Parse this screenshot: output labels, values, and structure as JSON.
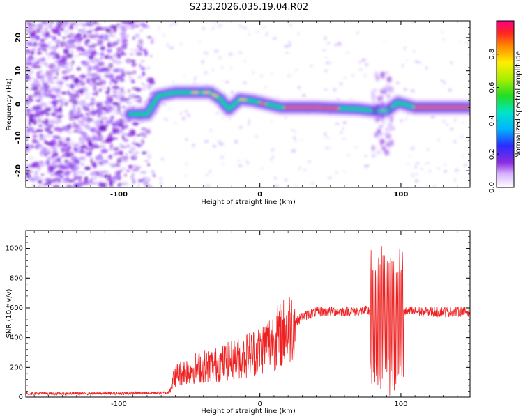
{
  "page_title": "S233.2026.035.19.04.R02",
  "chart_data": [
    {
      "type": "heatmap",
      "title": "S233.2026.035.19.04.R02",
      "xlabel": "Height of straight line (km)",
      "ylabel": "Frequency (Hz)",
      "xlim": [
        -166,
        149
      ],
      "ylim": [
        -25,
        25
      ],
      "x_ticks": [
        {
          "value": -100,
          "label": "-100"
        },
        {
          "value": 0,
          "label": "0"
        },
        {
          "value": 100,
          "label": "100"
        }
      ],
      "y_ticks": [
        {
          "value": 20,
          "label": "20"
        },
        {
          "value": 10,
          "label": "10"
        },
        {
          "value": 0,
          "label": "0"
        },
        {
          "value": -10,
          "label": "-10"
        },
        {
          "value": -20,
          "label": "-20"
        }
      ],
      "colorbar": {
        "label": "Normalized spectral amplitude",
        "range": [
          0,
          1
        ],
        "ticks": [
          {
            "value": 0.0,
            "label": "0.0"
          },
          {
            "value": 0.2,
            "label": "0.2"
          },
          {
            "value": 0.4,
            "label": "0.4"
          },
          {
            "value": 0.6,
            "label": "0.6"
          },
          {
            "value": 0.8,
            "label": "0.8"
          }
        ]
      },
      "ridge": [
        {
          "x": -92,
          "y": -3.0
        },
        {
          "x": -80,
          "y": -3.0
        },
        {
          "x": -72,
          "y": 2.5
        },
        {
          "x": -60,
          "y": 3.5
        },
        {
          "x": -45,
          "y": 3.5
        },
        {
          "x": -35,
          "y": 3.5
        },
        {
          "x": -28,
          "y": 1.5
        },
        {
          "x": -22,
          "y": -1.5
        },
        {
          "x": -14,
          "y": 1.5
        },
        {
          "x": -5,
          "y": 1.0
        },
        {
          "x": 5,
          "y": 0.0
        },
        {
          "x": 15,
          "y": -1.0
        },
        {
          "x": 40,
          "y": -1.0
        },
        {
          "x": 70,
          "y": -1.5
        },
        {
          "x": 80,
          "y": -2.0
        },
        {
          "x": 90,
          "y": -2.0
        },
        {
          "x": 98,
          "y": 0.5
        },
        {
          "x": 110,
          "y": -1.0
        },
        {
          "x": 149,
          "y": -1.0
        }
      ]
    },
    {
      "type": "line",
      "xlabel": "Height of straight line (km)",
      "ylabel": "SNR (10 * v/v)",
      "xlim": [
        -166,
        149
      ],
      "ylim": [
        0,
        1120
      ],
      "x_ticks": [
        {
          "value": -100,
          "label": "-100"
        },
        {
          "value": 0,
          "label": "0"
        },
        {
          "value": 100,
          "label": "100"
        }
      ],
      "y_ticks": [
        {
          "value": 0,
          "label": "0"
        },
        {
          "value": 200,
          "label": "200"
        },
        {
          "value": 400,
          "label": "400"
        },
        {
          "value": 600,
          "label": "600"
        },
        {
          "value": 800,
          "label": "800"
        },
        {
          "value": 1000,
          "label": "1000"
        }
      ],
      "color": "#ee2222",
      "envelope": [
        {
          "x": -166,
          "y": 25
        },
        {
          "x": -100,
          "y": 25
        },
        {
          "x": -65,
          "y": 30
        },
        {
          "x": -60,
          "y": 150
        },
        {
          "x": -45,
          "y": 200
        },
        {
          "x": -30,
          "y": 220
        },
        {
          "x": -15,
          "y": 260
        },
        {
          "x": 0,
          "y": 320
        },
        {
          "x": 15,
          "y": 420
        },
        {
          "x": 30,
          "y": 540
        },
        {
          "x": 40,
          "y": 575
        },
        {
          "x": 78,
          "y": 580
        },
        {
          "x": 80,
          "y": 520
        },
        {
          "x": 88,
          "y": 560
        },
        {
          "x": 96,
          "y": 480
        },
        {
          "x": 102,
          "y": 575
        },
        {
          "x": 149,
          "y": 575
        }
      ]
    }
  ]
}
